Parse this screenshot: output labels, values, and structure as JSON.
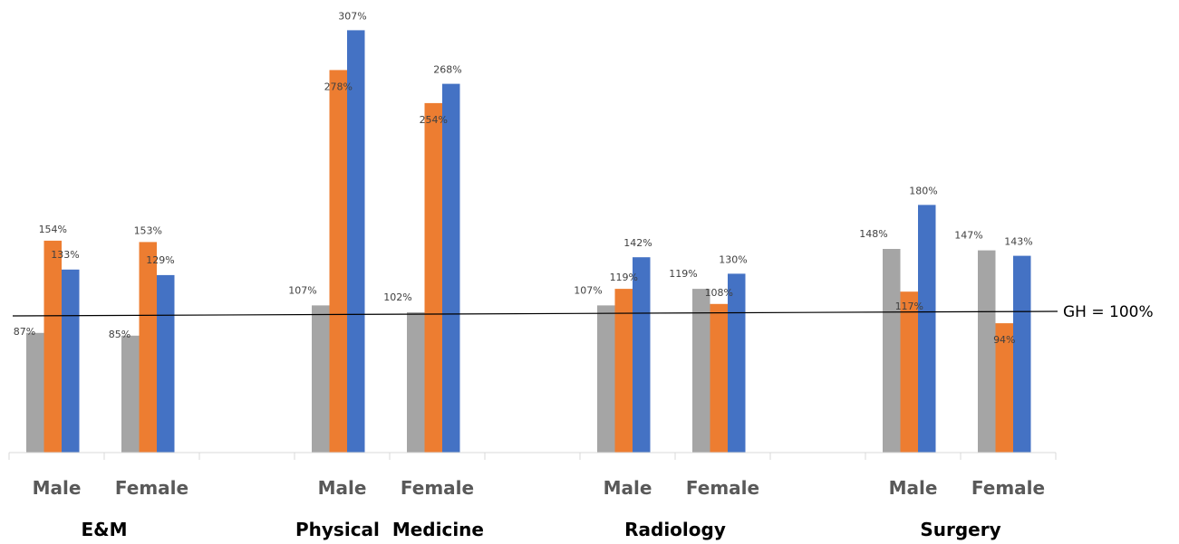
{
  "chart_data": {
    "type": "bar",
    "title": "",
    "xlabel": "",
    "ylabel": "",
    "ylim": [
      0,
      3.3
    ],
    "grid": false,
    "groups": [
      {
        "name": "E&M",
        "categories": [
          "Male",
          "Female"
        ]
      },
      {
        "name": "Physical  Medicine",
        "categories": [
          "Male",
          "Female"
        ]
      },
      {
        "name": "Radiology",
        "categories": [
          "Male",
          "Female"
        ]
      },
      {
        "name": "Surgery",
        "categories": [
          "Male",
          "Female"
        ]
      }
    ],
    "series": [
      {
        "color": "#a5a5a5",
        "values": [
          0.87,
          0.85,
          1.07,
          1.02,
          1.07,
          1.19,
          1.48,
          1.47
        ],
        "labels": [
          "87%",
          "85%",
          "107%",
          "102%",
          "107%",
          "119%",
          "148%",
          "147%"
        ]
      },
      {
        "color": "#ed7d31",
        "values": [
          1.54,
          1.53,
          2.78,
          2.54,
          1.19,
          1.08,
          1.17,
          0.94
        ],
        "labels": [
          "154%",
          "153%",
          "278%",
          "254%",
          "119%",
          "108%",
          "117%",
          "94%"
        ]
      },
      {
        "color": "#4472c4",
        "values": [
          1.33,
          1.29,
          3.07,
          2.68,
          1.42,
          1.3,
          1.8,
          1.43
        ],
        "labels": [
          "133%",
          "129%",
          "307%",
          "268%",
          "142%",
          "130%",
          "180%",
          "143%"
        ]
      }
    ],
    "reference_line": {
      "value": 1.0,
      "label": "GH = 100%"
    }
  }
}
